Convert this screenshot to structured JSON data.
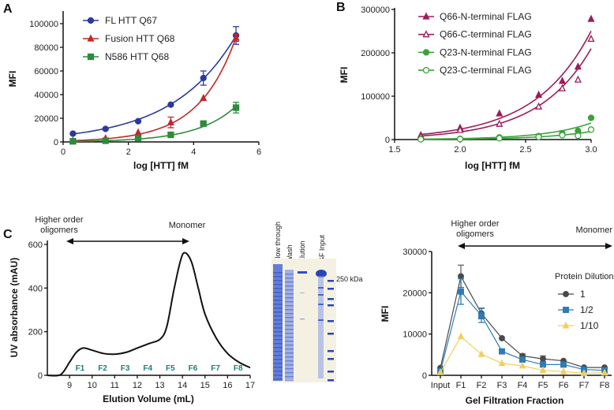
{
  "panels": {
    "a": "A",
    "b": "B",
    "c": "C"
  },
  "chart_data": [
    {
      "id": "A",
      "type": "line",
      "xlabel": "log [HTT] fM",
      "ylabel": "MFI",
      "xlim": [
        0,
        6
      ],
      "ylim": [
        0,
        100000
      ],
      "xticks": [
        "0",
        "2",
        "4",
        "6"
      ],
      "yticks": [
        "0",
        "20000",
        "40000",
        "60000",
        "80000",
        "100000"
      ],
      "legend_position": "top-left",
      "x": [
        0.3,
        1.3,
        2.3,
        3.3,
        4.3,
        5.3
      ],
      "series": [
        {
          "name": "FL HTT Q67",
          "color": "#2b3a9a",
          "marker": "circle",
          "values": [
            7000,
            11000,
            17500,
            31500,
            54000,
            90000
          ],
          "errors": [
            0,
            0,
            0,
            0,
            6000,
            7500
          ]
        },
        {
          "name": "Fusion HTT Q68",
          "color": "#c0282a",
          "marker": "triangle",
          "values": [
            1000,
            3000,
            8000,
            16500,
            37000,
            88000
          ],
          "errors": [
            0,
            0,
            0,
            4500,
            0,
            3000
          ]
        },
        {
          "name": "N586 HTT Q68",
          "color": "#2e8b3e",
          "marker": "square",
          "values": [
            500,
            1000,
            3000,
            6000,
            15500,
            29000
          ],
          "errors": [
            0,
            0,
            0,
            0,
            0,
            4500
          ]
        }
      ]
    },
    {
      "id": "B",
      "type": "scatter",
      "xlabel": "log [HTT] fM",
      "ylabel": "MFI",
      "xlim": [
        1.5,
        3.0
      ],
      "ylim": [
        0,
        300000
      ],
      "xticks": [
        "1.5",
        "2.0",
        "2.5",
        "3.0"
      ],
      "yticks": [
        "0",
        "100000",
        "200000",
        "300000"
      ],
      "legend_position": "top-left",
      "x": [
        1.7,
        2.0,
        2.3,
        2.6,
        2.78,
        2.9,
        3.0
      ],
      "series": [
        {
          "name": "Q66-N-terminal FLAG",
          "color": "#9b1d5a",
          "marker": "triangle",
          "filled": true,
          "values": [
            10000,
            27000,
            60000,
            103000,
            135000,
            168000,
            278000
          ]
        },
        {
          "name": "Q66-C-terminal FLAG",
          "color": "#9b1d5a",
          "marker": "triangle",
          "filled": false,
          "values": [
            7000,
            22000,
            36000,
            76000,
            118000,
            138000,
            232000
          ]
        },
        {
          "name": "Q23-N-terminal FLAG",
          "color": "#3aa33a",
          "marker": "circle",
          "filled": true,
          "values": [
            1000,
            1500,
            5000,
            8000,
            14000,
            20000,
            50000
          ]
        },
        {
          "name": "Q23-C-terminal FLAG",
          "color": "#3aa33a",
          "marker": "circle",
          "filled": false,
          "values": [
            500,
            1000,
            3000,
            6000,
            10000,
            9000,
            23000
          ]
        }
      ]
    },
    {
      "id": "C-chromatogram",
      "type": "line",
      "xlabel": "Elution Volume (mL)",
      "ylabel": "UV absorbance (mAU)",
      "xlim": [
        8,
        17
      ],
      "ylim": [
        0,
        600
      ],
      "xticks": [
        "9",
        "10",
        "11",
        "12",
        "13",
        "14",
        "15",
        "16",
        "17"
      ],
      "yticks": [
        "0",
        "200",
        "400",
        "600"
      ],
      "x": [
        8,
        8.6,
        9,
        9.3,
        9.6,
        10,
        10.5,
        11,
        11.5,
        12,
        12.5,
        13,
        13.3,
        13.6,
        13.9,
        14.1,
        14.4,
        14.7,
        15,
        15.5,
        16,
        16.5,
        17
      ],
      "values": [
        0,
        3,
        60,
        105,
        125,
        115,
        100,
        97,
        105,
        125,
        145,
        165,
        220,
        380,
        520,
        562,
        520,
        400,
        280,
        170,
        100,
        60,
        35
      ],
      "fractions": [
        "F1",
        "F2",
        "F3",
        "F4",
        "F5",
        "F6",
        "F7",
        "F8"
      ],
      "fraction_x": [
        9.5,
        10.5,
        11.5,
        12.5,
        13.5,
        14.5,
        15.5,
        16.5
      ],
      "annotations": {
        "left": [
          "Higher order",
          "oligomers"
        ],
        "right": "Monomer"
      }
    },
    {
      "id": "C-fractions",
      "type": "line",
      "xlabel": "Gel Filtration Fraction",
      "ylabel": "MFI",
      "ylim": [
        0,
        30000
      ],
      "categories": [
        "Input",
        "F1",
        "F2",
        "F3",
        "F4",
        "F5",
        "F6",
        "F7",
        "F8"
      ],
      "yticks": [
        "0",
        "10000",
        "20000",
        "30000"
      ],
      "legend_title": "Protein Dilution",
      "legend_position": "right",
      "series": [
        {
          "name": "1",
          "color": "#4a4a4a",
          "marker": "circle",
          "values": [
            1800,
            24000,
            15000,
            9000,
            4700,
            4000,
            3500,
            1900,
            1900
          ],
          "errors": [
            0,
            2700,
            1300,
            0,
            500,
            700,
            0,
            0,
            0
          ]
        },
        {
          "name": "1/2",
          "color": "#2e7bb5",
          "marker": "square",
          "values": [
            1000,
            20300,
            14500,
            5800,
            3800,
            2600,
            2600,
            1400,
            1200
          ],
          "errors": [
            0,
            3100,
            1700,
            0,
            0,
            0,
            0,
            0,
            0
          ]
        },
        {
          "name": "1/10",
          "color": "#f2cf5c",
          "marker": "triangle",
          "values": [
            700,
            9400,
            5100,
            2900,
            2300,
            1200,
            900,
            500,
            600
          ],
          "errors": [
            0,
            0,
            0,
            0,
            0,
            0,
            0,
            0,
            0
          ]
        }
      ],
      "annotations": {
        "left": [
          "Higher order",
          "oligomers"
        ],
        "right": "Monomer"
      }
    }
  ],
  "gel": {
    "lanes": [
      "Flow through",
      "Wash",
      "Elution",
      "GF Input"
    ],
    "marker": "250 kDa"
  }
}
